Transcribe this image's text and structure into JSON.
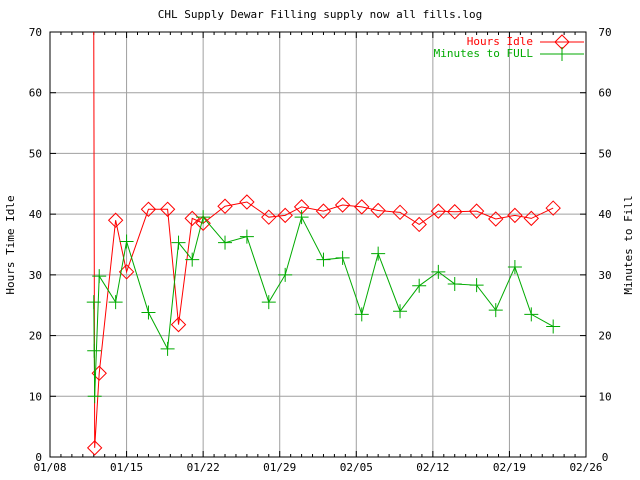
{
  "chart_data": {
    "type": "line",
    "title": "CHL Supply Dewar Filling supply now all fills.log",
    "ylabel": "Hours Time Idle",
    "y2label": "Minutes to Fill",
    "xlabel": "",
    "x_ticks": [
      "01/08",
      "01/15",
      "01/22",
      "01/29",
      "02/05",
      "02/12",
      "02/19",
      "02/26"
    ],
    "y_ticks": [
      "0",
      "10",
      "20",
      "30",
      "40",
      "50",
      "60",
      "70"
    ],
    "y2_ticks": [
      "0",
      "10",
      "20",
      "30",
      "40",
      "50",
      "60",
      "70"
    ],
    "xlim": [
      "2008-01-08",
      "2008-02-26"
    ],
    "ylim": [
      0,
      70
    ],
    "y2lim": [
      0,
      70
    ],
    "grid": true,
    "legend_position": "top-right",
    "series": [
      {
        "name": "Hours Idle",
        "color": "#ff0000",
        "marker": "diamond",
        "points": [
          [
            "2008-01-12 00:00",
            70.0
          ],
          [
            "2008-01-12 02:00",
            1.5
          ],
          [
            "2008-01-12 12:00",
            13.8
          ],
          [
            "2008-01-14 00:00",
            39.0
          ],
          [
            "2008-01-15 00:00",
            30.5
          ],
          [
            "2008-01-17 00:00",
            40.8
          ],
          [
            "2008-01-18 18:00",
            40.8
          ],
          [
            "2008-01-19 18:00",
            21.8
          ],
          [
            "2008-01-21 00:00",
            39.3
          ],
          [
            "2008-01-22 00:00",
            38.5
          ],
          [
            "2008-01-24 00:00",
            41.3
          ],
          [
            "2008-01-26 00:00",
            42.0
          ],
          [
            "2008-01-28 00:00",
            39.5
          ],
          [
            "2008-01-29 12:00",
            39.8
          ],
          [
            "2008-01-31 00:00",
            41.2
          ],
          [
            "2008-02-02 00:00",
            40.5
          ],
          [
            "2008-02-03 18:00",
            41.5
          ],
          [
            "2008-02-05 12:00",
            41.2
          ],
          [
            "2008-02-07 00:00",
            40.6
          ],
          [
            "2008-02-09 00:00",
            40.3
          ],
          [
            "2008-02-10 18:00",
            38.3
          ],
          [
            "2008-02-12 12:00",
            40.5
          ],
          [
            "2008-02-14 00:00",
            40.4
          ],
          [
            "2008-02-16 00:00",
            40.5
          ],
          [
            "2008-02-17 18:00",
            39.2
          ],
          [
            "2008-02-19 12:00",
            39.8
          ],
          [
            "2008-02-21 00:00",
            39.3
          ],
          [
            "2008-02-23 00:00",
            41.0
          ]
        ]
      },
      {
        "name": "Minutes to FULL",
        "color": "#00aa00",
        "marker": "plus",
        "points": [
          [
            "2008-01-12 00:00",
            25.5
          ],
          [
            "2008-01-12 01:00",
            17.5
          ],
          [
            "2008-01-12 02:00",
            10.0
          ],
          [
            "2008-01-12 12:00",
            29.8
          ],
          [
            "2008-01-14 00:00",
            25.5
          ],
          [
            "2008-01-15 00:00",
            35.5
          ],
          [
            "2008-01-17 00:00",
            23.8
          ],
          [
            "2008-01-18 18:00",
            17.8
          ],
          [
            "2008-01-19 18:00",
            35.3
          ],
          [
            "2008-01-21 00:00",
            32.5
          ],
          [
            "2008-01-22 00:00",
            39.5
          ],
          [
            "2008-01-24 00:00",
            35.3
          ],
          [
            "2008-01-26 00:00",
            36.3
          ],
          [
            "2008-01-28 00:00",
            25.5
          ],
          [
            "2008-01-29 12:00",
            30.0
          ],
          [
            "2008-01-31 00:00",
            39.5
          ],
          [
            "2008-02-02 00:00",
            32.5
          ],
          [
            "2008-02-03 18:00",
            32.8
          ],
          [
            "2008-02-05 12:00",
            23.5
          ],
          [
            "2008-02-07 00:00",
            33.5
          ],
          [
            "2008-02-09 00:00",
            24.0
          ],
          [
            "2008-02-10 18:00",
            28.2
          ],
          [
            "2008-02-12 12:00",
            30.5
          ],
          [
            "2008-02-14 00:00",
            28.5
          ],
          [
            "2008-02-16 00:00",
            28.3
          ],
          [
            "2008-02-17 18:00",
            24.2
          ],
          [
            "2008-02-19 12:00",
            31.3
          ],
          [
            "2008-02-21 00:00",
            23.5
          ],
          [
            "2008-02-23 00:00",
            21.5
          ]
        ]
      }
    ]
  }
}
